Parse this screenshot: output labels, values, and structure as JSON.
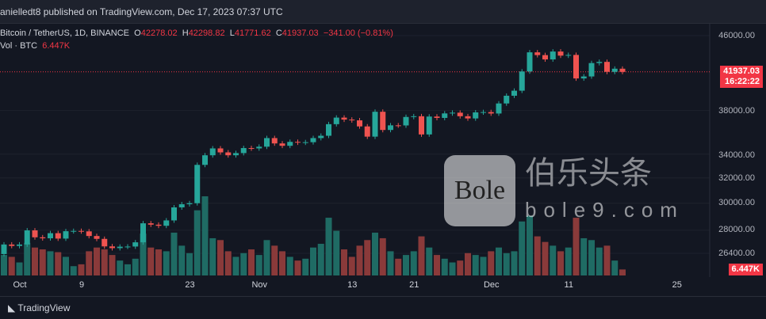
{
  "header": {
    "text": "anielledt8 published on TradingView.com, Dec 17, 2023 07:37 UTC"
  },
  "legend": {
    "symbol": "Bitcoin / TetherUS, 1D, BINANCE",
    "o_label": "O",
    "o": "42278.02",
    "h_label": "H",
    "h": "42298.82",
    "l_label": "L",
    "l": "41771.62",
    "c_label": "C",
    "c": "41937.03",
    "change": "−341.00 (−0.81%)",
    "vol_label": "Vol · BTC",
    "vol": "6.447K"
  },
  "price_axis": {
    "labels": [
      "46000.00",
      "38000.00",
      "34000.00",
      "32000.00",
      "30000.00",
      "28000.00",
      "26400.00"
    ],
    "last_price": "41937.03",
    "countdown": "16:22:22",
    "vol_tag": "6.447K"
  },
  "time_axis": {
    "labels": [
      {
        "text": "Oct",
        "day": 3
      },
      {
        "text": "9",
        "day": 11
      },
      {
        "text": "23",
        "day": 25
      },
      {
        "text": "Nov",
        "day": 34
      },
      {
        "text": "13",
        "day": 46
      },
      {
        "text": "21",
        "day": 54
      },
      {
        "text": "Dec",
        "day": 64
      },
      {
        "text": "11",
        "day": 74
      },
      {
        "text": "25",
        "day": 88
      }
    ]
  },
  "bottom": {
    "brand": "TradingView"
  },
  "watermark": {
    "logo": "Bole",
    "cn": "伯乐头条",
    "url": "bole9.com"
  },
  "colors": {
    "up": "#26a69a",
    "down": "#ef5350",
    "vol_up": "#1f6b64",
    "vol_down": "#8a3a3a"
  },
  "chart_data": {
    "type": "candlestick",
    "first_open": 26350,
    "start": "Sep 28, 2023",
    "scale": "log",
    "closes": [
      27000,
      26900,
      27000,
      27990,
      27500,
      27430,
      27790,
      27410,
      27930,
      27950,
      27920,
      27590,
      27390,
      26870,
      26750,
      26850,
      26860,
      27150,
      28500,
      28400,
      28320,
      28710,
      29680,
      29920,
      30000,
      33080,
      33900,
      34500,
      34150,
      33900,
      34090,
      34530,
      34500,
      34650,
      35420,
      34940,
      34730,
      35080,
      35010,
      35050,
      35420,
      35630,
      36700,
      37320,
      37130,
      37060,
      36490,
      35550,
      37880,
      36160,
      36590,
      36580,
      37380,
      37450,
      35750,
      37420,
      37290,
      37720,
      37790,
      37450,
      37240,
      37820,
      37850,
      37710,
      38690,
      39460,
      39970,
      41980,
      44080,
      43770,
      43290,
      44170,
      43710,
      43790,
      41240,
      41450,
      42890,
      43020,
      41940,
      42278.02,
      41937.03
    ],
    "volumes": [
      22,
      20,
      14,
      35,
      30,
      28,
      26,
      25,
      20,
      10,
      12,
      26,
      30,
      28,
      22,
      16,
      12,
      18,
      45,
      30,
      28,
      26,
      46,
      32,
      24,
      70,
      85,
      40,
      38,
      26,
      20,
      24,
      28,
      22,
      38,
      32,
      26,
      20,
      16,
      18,
      30,
      34,
      62,
      48,
      28,
      20,
      32,
      38,
      46,
      40,
      26,
      18,
      22,
      26,
      42,
      30,
      22,
      18,
      14,
      16,
      24,
      22,
      20,
      26,
      30,
      24,
      26,
      58,
      64,
      42,
      36,
      32,
      26,
      30,
      62,
      40,
      38,
      30,
      32,
      16,
      6.447
    ]
  }
}
